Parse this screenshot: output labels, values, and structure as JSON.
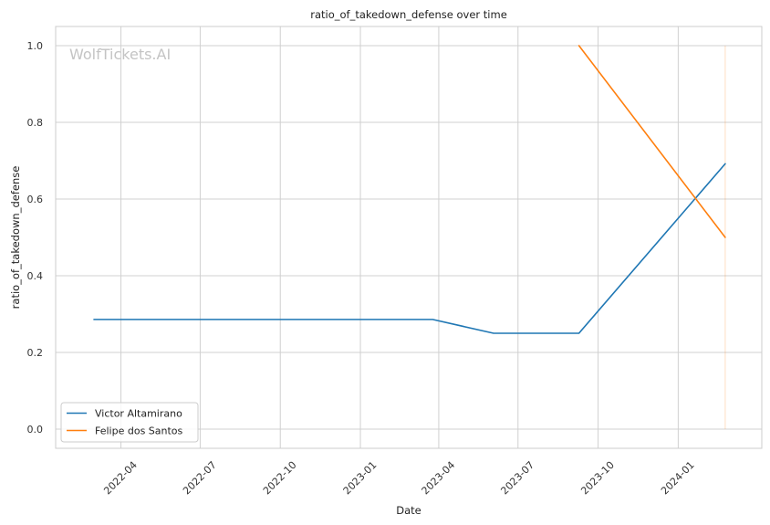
{
  "chart_data": {
    "type": "line",
    "title": "ratio_of_takedown_defense over time",
    "xlabel": "Date",
    "ylabel": "ratio_of_takedown_defense",
    "watermark": "WolfTickets.AI",
    "grid": true,
    "legend_position": "lower-left",
    "xlim": [
      "2022-01-16",
      "2024-04-06"
    ],
    "ylim": [
      -0.05,
      1.05
    ],
    "x_ticks": [
      {
        "date": "2022-04-01",
        "label": "2022-04"
      },
      {
        "date": "2022-07-01",
        "label": "2022-07"
      },
      {
        "date": "2022-10-01",
        "label": "2022-10"
      },
      {
        "date": "2023-01-01",
        "label": "2023-01"
      },
      {
        "date": "2023-04-01",
        "label": "2023-04"
      },
      {
        "date": "2023-07-01",
        "label": "2023-07"
      },
      {
        "date": "2023-10-01",
        "label": "2023-10"
      },
      {
        "date": "2024-01-01",
        "label": "2024-01"
      }
    ],
    "y_ticks": [
      {
        "value": 0.0,
        "label": "0.0"
      },
      {
        "value": 0.2,
        "label": "0.2"
      },
      {
        "value": 0.4,
        "label": "0.4"
      },
      {
        "value": 0.6,
        "label": "0.6"
      },
      {
        "value": 0.8,
        "label": "0.8"
      },
      {
        "value": 1.0,
        "label": "1.0"
      }
    ],
    "series": [
      {
        "name": "Victor Altamirano",
        "color": "#1f77b4",
        "points": [
          {
            "x": "2022-03-01",
            "y": 0.286
          },
          {
            "x": "2023-03-25",
            "y": 0.286
          },
          {
            "x": "2023-06-03",
            "y": 0.25
          },
          {
            "x": "2023-09-09",
            "y": 0.25
          },
          {
            "x": "2024-02-24",
            "y": 0.692
          }
        ]
      },
      {
        "name": "Felipe dos Santos",
        "color": "#ff7f0e",
        "points": [
          {
            "x": "2023-09-09",
            "y": 1.0
          },
          {
            "x": "2024-02-24",
            "y": 0.5
          }
        ]
      }
    ],
    "annotations": [
      {
        "type": "vertical-line",
        "x": "2024-02-24",
        "y_from": 0.0,
        "y_to": 1.0,
        "color": "#ff7f0e"
      }
    ]
  }
}
